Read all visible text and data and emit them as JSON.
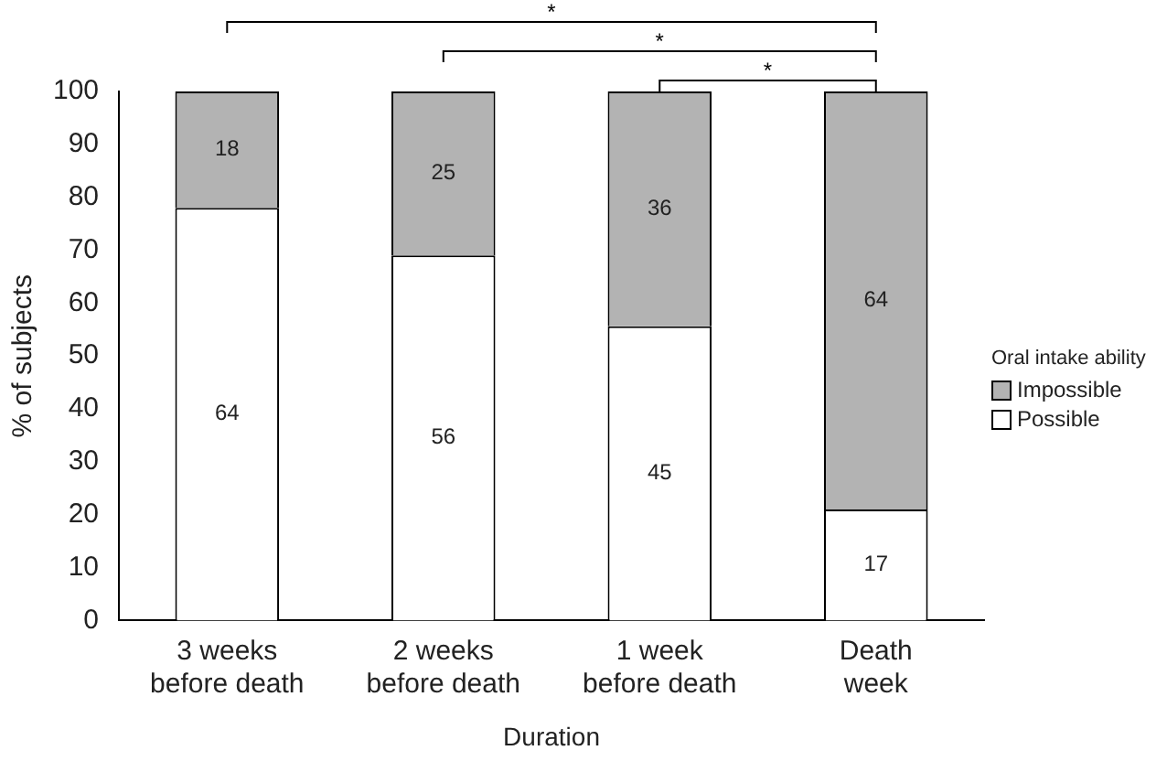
{
  "chart_data": {
    "type": "bar",
    "stacked": true,
    "xlabel": "Duration",
    "ylabel": "% of subjects",
    "legend_title": "Oral intake ability",
    "categories": [
      "3 weeks before death",
      "2 weeks before death",
      "1 week before death",
      "Death week"
    ],
    "series": [
      {
        "name": "Possible",
        "color": "#ffffff",
        "values": [
          78,
          69,
          55.6,
          21
        ]
      },
      {
        "name": "Impossible",
        "color": "#b3b3b3",
        "values": [
          22,
          31,
          44.4,
          79
        ]
      }
    ],
    "ylim": [
      0,
      100
    ],
    "yticks": [
      0,
      10,
      20,
      30,
      40,
      50,
      60,
      70,
      80,
      90,
      100
    ],
    "grid": false,
    "legend": "right",
    "annotations": [
      "*",
      "*",
      "*",
      "64",
      "56",
      "45",
      "17",
      "18",
      "25",
      "36",
      "64"
    ]
  }
}
